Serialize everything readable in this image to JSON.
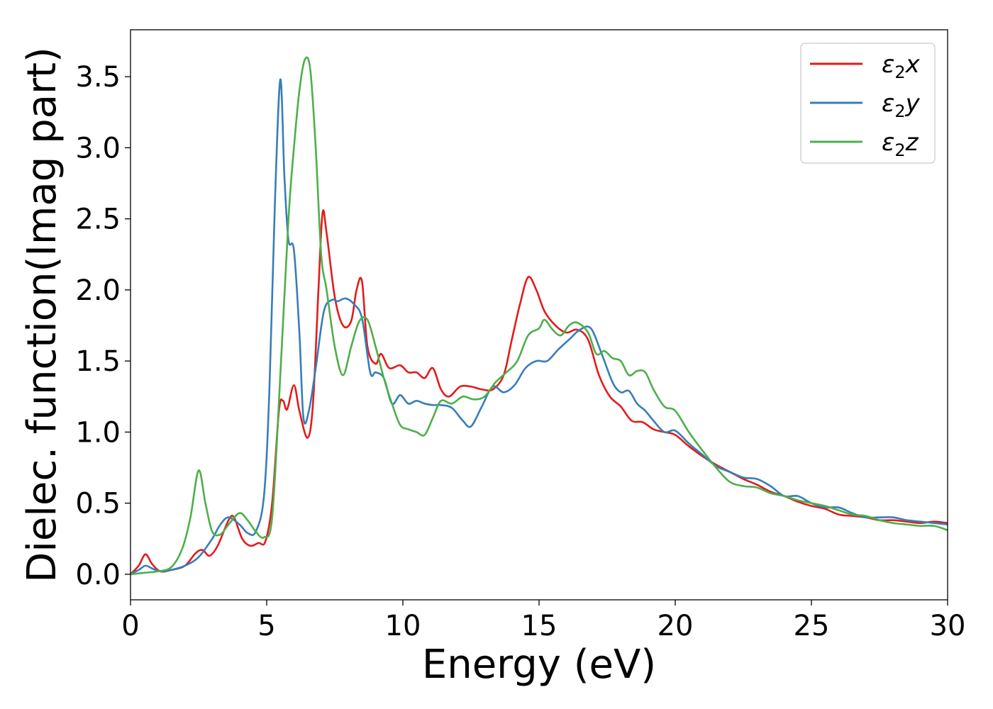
{
  "chart_data": {
    "type": "line",
    "xlabel": "Energy (eV)",
    "ylabel": "Dielec. function(Imag part)",
    "xlim": [
      0,
      30
    ],
    "ylim": [
      -0.18,
      3.83
    ],
    "xticks": [
      0,
      5,
      10,
      15,
      20,
      25,
      30
    ],
    "yticks": [
      0.0,
      0.5,
      1.0,
      1.5,
      2.0,
      2.5,
      3.0,
      3.5
    ],
    "xtick_labels": [
      "0",
      "5",
      "10",
      "15",
      "20",
      "25",
      "30"
    ],
    "ytick_labels": [
      "0.0",
      "0.5",
      "1.0",
      "1.5",
      "2.0",
      "2.5",
      "3.0",
      "3.5"
    ],
    "grid": false,
    "legend_position": "top-right",
    "series": [
      {
        "name": "ε₂x",
        "legend_base": "ε",
        "legend_sub": "2",
        "legend_suffix": "x",
        "color": "#e41a1c",
        "x": [
          0,
          0.3,
          0.55,
          0.8,
          1.1,
          1.5,
          2.0,
          2.4,
          2.65,
          2.9,
          3.2,
          3.6,
          3.8,
          4.1,
          4.4,
          4.7,
          4.95,
          5.2,
          5.45,
          5.6,
          5.75,
          6.0,
          6.2,
          6.5,
          6.7,
          6.9,
          7.05,
          7.2,
          7.5,
          7.8,
          8.1,
          8.3,
          8.5,
          8.7,
          9.0,
          9.2,
          9.5,
          9.9,
          10.2,
          10.5,
          10.8,
          11.1,
          11.4,
          11.7,
          12.1,
          12.5,
          12.9,
          13.3,
          13.7,
          14.0,
          14.3,
          14.6,
          14.9,
          15.2,
          15.6,
          16.0,
          16.4,
          16.8,
          17.2,
          17.6,
          18.0,
          18.4,
          18.8,
          19.2,
          19.6,
          20.0,
          20.5,
          21.0,
          21.5,
          22.0,
          22.5,
          23.0,
          23.5,
          24.0,
          24.5,
          25.0,
          25.5,
          26.0,
          26.5,
          27.0,
          27.5,
          28.0,
          28.5,
          29.0,
          29.5,
          30.0
        ],
        "values": [
          0.0,
          0.06,
          0.14,
          0.07,
          0.02,
          0.03,
          0.06,
          0.15,
          0.17,
          0.13,
          0.2,
          0.38,
          0.4,
          0.25,
          0.2,
          0.22,
          0.23,
          0.5,
          1.15,
          1.22,
          1.16,
          1.33,
          1.15,
          0.96,
          1.2,
          2.0,
          2.54,
          2.4,
          1.95,
          1.75,
          1.78,
          2.0,
          2.06,
          1.6,
          1.48,
          1.55,
          1.45,
          1.47,
          1.42,
          1.42,
          1.38,
          1.45,
          1.3,
          1.25,
          1.32,
          1.32,
          1.3,
          1.3,
          1.4,
          1.65,
          1.9,
          2.09,
          2.0,
          1.85,
          1.75,
          1.7,
          1.72,
          1.65,
          1.4,
          1.25,
          1.18,
          1.08,
          1.07,
          1.02,
          1.0,
          0.98,
          0.9,
          0.83,
          0.77,
          0.72,
          0.67,
          0.63,
          0.58,
          0.55,
          0.51,
          0.48,
          0.46,
          0.42,
          0.41,
          0.4,
          0.38,
          0.38,
          0.37,
          0.36,
          0.37,
          0.36
        ]
      },
      {
        "name": "ε₂y",
        "legend_base": "ε",
        "legend_sub": "2",
        "legend_suffix": "y",
        "color": "#377eb8",
        "x": [
          0,
          0.3,
          0.55,
          0.8,
          1.1,
          1.5,
          2.0,
          2.5,
          3.0,
          3.3,
          3.6,
          4.0,
          4.3,
          4.6,
          4.9,
          5.1,
          5.3,
          5.5,
          5.65,
          5.8,
          6.0,
          6.2,
          6.35,
          6.55,
          6.8,
          7.1,
          7.4,
          7.6,
          7.9,
          8.2,
          8.5,
          8.8,
          9.0,
          9.3,
          9.6,
          9.9,
          10.2,
          10.5,
          10.8,
          11.1,
          11.4,
          11.8,
          12.2,
          12.5,
          12.9,
          13.3,
          13.7,
          14.1,
          14.5,
          14.9,
          15.3,
          15.7,
          16.1,
          16.5,
          16.9,
          17.3,
          17.7,
          18.0,
          18.3,
          18.6,
          18.9,
          19.2,
          19.6,
          20.0,
          20.5,
          21.0,
          21.5,
          22.0,
          22.5,
          23.0,
          23.5,
          24.0,
          24.5,
          25.0,
          25.5,
          26.0,
          26.5,
          27.0,
          27.5,
          28.0,
          28.5,
          29.0,
          29.5,
          30.0
        ],
        "values": [
          0.0,
          0.03,
          0.06,
          0.04,
          0.02,
          0.03,
          0.06,
          0.12,
          0.25,
          0.35,
          0.4,
          0.35,
          0.29,
          0.3,
          0.55,
          1.3,
          2.6,
          3.48,
          2.8,
          2.35,
          2.28,
          1.7,
          1.1,
          1.15,
          1.45,
          1.85,
          1.93,
          1.92,
          1.94,
          1.9,
          1.8,
          1.42,
          1.42,
          1.38,
          1.2,
          1.26,
          1.2,
          1.22,
          1.2,
          1.19,
          1.19,
          1.17,
          1.08,
          1.04,
          1.18,
          1.32,
          1.28,
          1.33,
          1.45,
          1.5,
          1.5,
          1.58,
          1.65,
          1.72,
          1.73,
          1.55,
          1.35,
          1.28,
          1.29,
          1.2,
          1.15,
          1.08,
          1.0,
          1.01,
          0.92,
          0.84,
          0.76,
          0.72,
          0.68,
          0.67,
          0.62,
          0.55,
          0.55,
          0.5,
          0.47,
          0.47,
          0.43,
          0.4,
          0.4,
          0.4,
          0.38,
          0.37,
          0.36,
          0.35
        ]
      },
      {
        "name": "ε₂z",
        "legend_base": "ε",
        "legend_sub": "2",
        "legend_suffix": "z",
        "color": "#4daf4a",
        "x": [
          0,
          0.5,
          1.0,
          1.5,
          1.9,
          2.2,
          2.5,
          2.75,
          3.0,
          3.3,
          3.6,
          4.0,
          4.3,
          4.6,
          4.9,
          5.2,
          5.5,
          5.8,
          6.0,
          6.2,
          6.4,
          6.6,
          6.8,
          7.0,
          7.2,
          7.5,
          7.8,
          8.1,
          8.4,
          8.7,
          9.0,
          9.3,
          9.6,
          9.9,
          10.2,
          10.5,
          10.8,
          11.1,
          11.4,
          11.8,
          12.2,
          12.6,
          13.0,
          13.4,
          13.8,
          14.2,
          14.6,
          15.0,
          15.2,
          15.5,
          15.8,
          16.1,
          16.4,
          16.8,
          17.1,
          17.4,
          17.7,
          18.0,
          18.3,
          18.6,
          18.9,
          19.2,
          19.6,
          20.0,
          20.5,
          21.0,
          21.5,
          22.0,
          22.5,
          23.0,
          23.5,
          24.0,
          24.5,
          25.0,
          25.5,
          26.0,
          26.5,
          27.0,
          27.5,
          28.0,
          28.5,
          29.0,
          29.5,
          30.0
        ],
        "values": [
          0.0,
          0.01,
          0.02,
          0.05,
          0.18,
          0.4,
          0.73,
          0.5,
          0.3,
          0.28,
          0.35,
          0.43,
          0.38,
          0.3,
          0.26,
          0.4,
          1.4,
          2.5,
          3.0,
          3.4,
          3.62,
          3.55,
          3.0,
          2.25,
          2.0,
          1.6,
          1.4,
          1.6,
          1.78,
          1.79,
          1.6,
          1.38,
          1.2,
          1.05,
          1.02,
          1.0,
          0.98,
          1.1,
          1.22,
          1.2,
          1.25,
          1.23,
          1.25,
          1.35,
          1.42,
          1.5,
          1.68,
          1.73,
          1.79,
          1.72,
          1.68,
          1.75,
          1.77,
          1.7,
          1.55,
          1.57,
          1.52,
          1.5,
          1.4,
          1.43,
          1.42,
          1.3,
          1.18,
          1.15,
          1.0,
          0.87,
          0.75,
          0.65,
          0.62,
          0.61,
          0.57,
          0.55,
          0.52,
          0.5,
          0.48,
          0.45,
          0.42,
          0.41,
          0.38,
          0.36,
          0.35,
          0.34,
          0.34,
          0.31
        ]
      }
    ]
  }
}
